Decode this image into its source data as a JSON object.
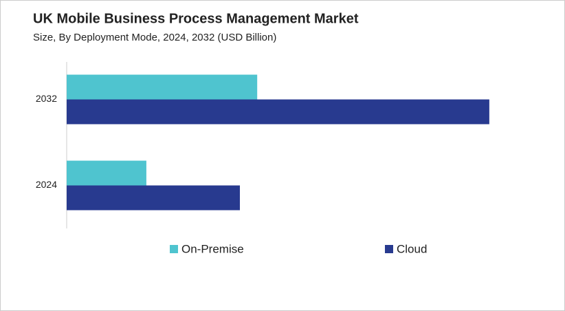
{
  "chart_data": {
    "type": "bar",
    "orientation": "horizontal",
    "title": "UK Mobile Business Process Management Market",
    "subtitle": "Size, By Deployment Mode, 2024, 2032 (USD Billion)",
    "categories": [
      "2024",
      "2032"
    ],
    "series": [
      {
        "name": "On-Premise",
        "color": "#4fc4cf",
        "values": [
          0.46,
          1.1
        ]
      },
      {
        "name": "Cloud",
        "color": "#283a8f",
        "values": [
          1.0,
          2.44
        ]
      }
    ],
    "xlim": [
      0,
      2.5
    ]
  }
}
